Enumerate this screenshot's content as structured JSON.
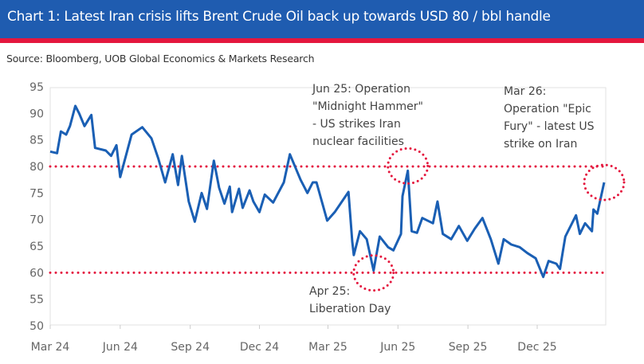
{
  "header": {
    "title": "Chart 1: Latest Iran crisis lifts Brent Crude Oil back up towards USD 80 / bbl handle"
  },
  "source": "Source: Bloomberg, UOB Global Economics & Markets Research",
  "chart_data": {
    "type": "line",
    "title": "Chart 1: Latest Iran crisis lifts Brent Crude Oil back up towards USD 80 / bbl handle",
    "xlabel": "",
    "ylabel": "",
    "ylim": [
      50,
      95
    ],
    "xlim": [
      "2024-03-01",
      "2026-03-01"
    ],
    "yticks": [
      "95",
      "90",
      "85",
      "80",
      "75",
      "70",
      "65",
      "60",
      "55",
      "50"
    ],
    "xticks": [
      {
        "label": "Mar 24",
        "date": "2024-03-01"
      },
      {
        "label": "Jun 24",
        "date": "2024-06-01"
      },
      {
        "label": "Sep 24",
        "date": "2024-09-01"
      },
      {
        "label": "Dec 24",
        "date": "2024-12-01"
      },
      {
        "label": "Mar 25",
        "date": "2025-03-01"
      },
      {
        "label": "Jun 25",
        "date": "2025-06-01"
      },
      {
        "label": "Sep 25",
        "date": "2025-09-01"
      },
      {
        "label": "Dec 25",
        "date": "2025-12-01"
      }
    ],
    "grid": false,
    "series": [
      {
        "color": "#1a5fb4",
        "points": [
          [
            "2024-03-01",
            82.8
          ],
          [
            "2024-03-10",
            82.5
          ],
          [
            "2024-03-15",
            86.6
          ],
          [
            "2024-03-22",
            86
          ],
          [
            "2024-03-27",
            87.6
          ],
          [
            "2024-04-03",
            91.4
          ],
          [
            "2024-04-08",
            90
          ],
          [
            "2024-04-15",
            87.6
          ],
          [
            "2024-04-24",
            89.7
          ],
          [
            "2024-04-29",
            83.5
          ],
          [
            "2024-05-13",
            83
          ],
          [
            "2024-05-20",
            82
          ],
          [
            "2024-05-27",
            84
          ],
          [
            "2024-06-01",
            78
          ],
          [
            "2024-06-16",
            86
          ],
          [
            "2024-06-30",
            87.4
          ],
          [
            "2024-07-12",
            85.3
          ],
          [
            "2024-07-21",
            81.5
          ],
          [
            "2024-07-30",
            77
          ],
          [
            "2024-08-09",
            82.3
          ],
          [
            "2024-08-16",
            76.5
          ],
          [
            "2024-08-21",
            82
          ],
          [
            "2024-08-30",
            73.4
          ],
          [
            "2024-09-07",
            69.6
          ],
          [
            "2024-09-16",
            75
          ],
          [
            "2024-09-23",
            72
          ],
          [
            "2024-10-02",
            81.1
          ],
          [
            "2024-10-09",
            76
          ],
          [
            "2024-10-16",
            73
          ],
          [
            "2024-10-23",
            76.2
          ],
          [
            "2024-10-26",
            71.4
          ],
          [
            "2024-11-04",
            75.8
          ],
          [
            "2024-11-09",
            72.2
          ],
          [
            "2024-11-18",
            75.5
          ],
          [
            "2024-11-23",
            73.4
          ],
          [
            "2024-12-01",
            71.4
          ],
          [
            "2024-12-08",
            74.7
          ],
          [
            "2024-12-19",
            73.2
          ],
          [
            "2025-01-02",
            77
          ],
          [
            "2025-01-10",
            82.3
          ],
          [
            "2025-01-24",
            77.5
          ],
          [
            "2025-02-02",
            75
          ],
          [
            "2025-02-09",
            77
          ],
          [
            "2025-02-14",
            77
          ],
          [
            "2025-02-21",
            73.4
          ],
          [
            "2025-02-28",
            69.8
          ],
          [
            "2025-03-10",
            71.4
          ],
          [
            "2025-03-28",
            75.2
          ],
          [
            "2025-04-02",
            65.8
          ],
          [
            "2025-04-04",
            63.3
          ],
          [
            "2025-04-12",
            67.8
          ],
          [
            "2025-04-21",
            66.3
          ],
          [
            "2025-04-30",
            60.4
          ],
          [
            "2025-05-08",
            66.8
          ],
          [
            "2025-05-19",
            64.8
          ],
          [
            "2025-05-26",
            64.2
          ],
          [
            "2025-06-05",
            67.3
          ],
          [
            "2025-06-07",
            74.4
          ],
          [
            "2025-06-14",
            79.2
          ],
          [
            "2025-06-19",
            67.8
          ],
          [
            "2025-06-26",
            67.5
          ],
          [
            "2025-07-03",
            70.3
          ],
          [
            "2025-07-17",
            69.3
          ],
          [
            "2025-07-23",
            73.4
          ],
          [
            "2025-07-30",
            67.3
          ],
          [
            "2025-08-10",
            66.3
          ],
          [
            "2025-08-20",
            68.8
          ],
          [
            "2025-08-31",
            66
          ],
          [
            "2025-09-10",
            68.3
          ],
          [
            "2025-09-20",
            70.3
          ],
          [
            "2025-10-01",
            66.3
          ],
          [
            "2025-10-11",
            61.7
          ],
          [
            "2025-10-18",
            66.3
          ],
          [
            "2025-10-28",
            65.3
          ],
          [
            "2025-11-08",
            64.8
          ],
          [
            "2025-11-18",
            63.7
          ],
          [
            "2025-11-29",
            62.7
          ],
          [
            "2025-12-09",
            59.2
          ],
          [
            "2025-12-16",
            62.2
          ],
          [
            "2025-12-26",
            61.7
          ],
          [
            "2025-12-31",
            60.7
          ],
          [
            "2026-01-04",
            64.2
          ],
          [
            "2026-01-07",
            66.8
          ],
          [
            "2026-01-21",
            70.8
          ],
          [
            "2026-01-26",
            67.3
          ],
          [
            "2026-02-02",
            69.3
          ],
          [
            "2026-02-11",
            67.8
          ],
          [
            "2026-02-13",
            71.9
          ],
          [
            "2026-02-18",
            71.1
          ],
          [
            "2026-02-27",
            77
          ]
        ]
      }
    ],
    "reference_lines": [
      {
        "y": 80,
        "color": "#e4173e",
        "style": "dotted"
      },
      {
        "y": 60,
        "color": "#e4173e",
        "style": "dotted"
      }
    ],
    "annotations": [
      {
        "lines": [
          "Jun 25: Operation",
          "\"Midnight Hammer\"",
          "- US strikes Iran",
          "nuclear facilities"
        ],
        "date": "2025-06-14",
        "y": 79.2
      },
      {
        "lines": [
          "Apr 25:",
          "Liberation Day"
        ],
        "date": "2025-04-30",
        "y": 60.4
      },
      {
        "lines": [
          "Mar 26:",
          "Operation \"Epic",
          "Fury\" - latest US",
          "strike on Iran"
        ],
        "date": "2026-02-27",
        "y": 77
      }
    ]
  }
}
